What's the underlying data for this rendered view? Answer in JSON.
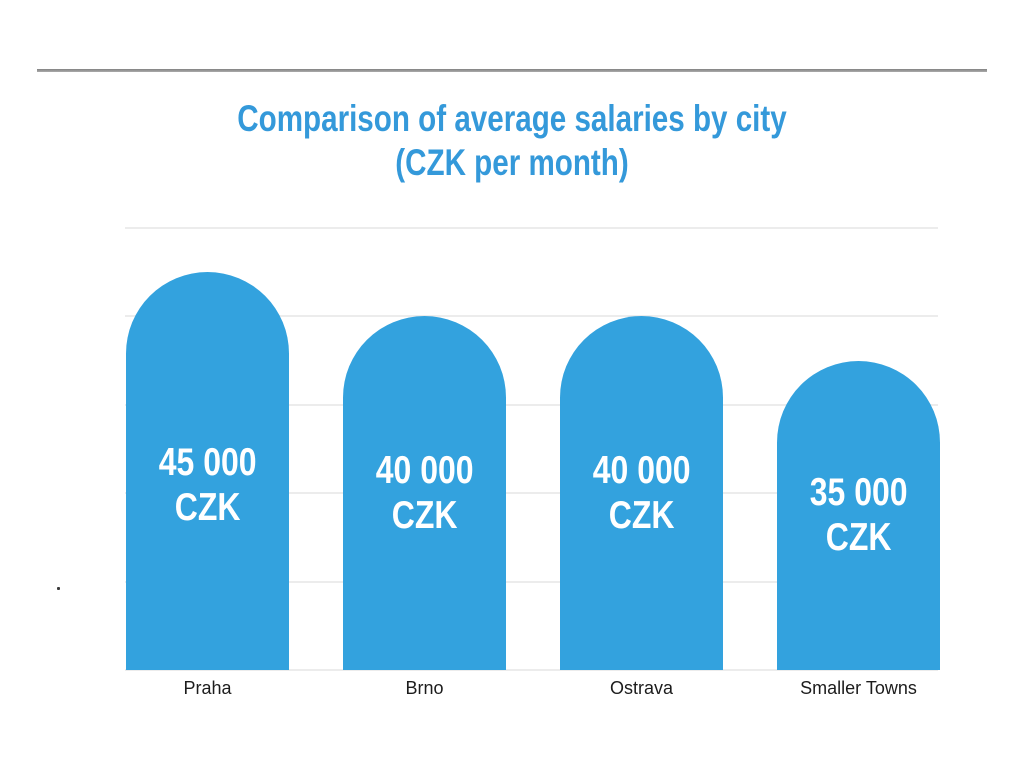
{
  "title": {
    "line1": "Comparison of average salaries by city",
    "line2": "(CZK per month)",
    "color": "#3499da"
  },
  "chart_data": {
    "type": "bar",
    "title": "Comparison of average salaries by city (CZK per month)",
    "categories": [
      "Praha",
      "Brno",
      "Ostrava",
      "Smaller Towns"
    ],
    "values": [
      45000,
      40000,
      40000,
      35000
    ],
    "value_labels": [
      [
        "45 000",
        "CZK"
      ],
      [
        "40 000",
        "CZK"
      ],
      [
        "40 000",
        "CZK"
      ],
      [
        "35 000",
        "CZK"
      ]
    ],
    "unit": "CZK per month",
    "xlabel": "",
    "ylabel": "",
    "ylim": [
      0,
      50000
    ],
    "gridline_step": 10000,
    "grid": true,
    "y_tick_labels_visible": false,
    "legend": "none",
    "bar_color": "#33a2de",
    "value_label_color": "#ffffff",
    "category_label_color": "#1c1c1c",
    "grid_color": "#ececec"
  }
}
